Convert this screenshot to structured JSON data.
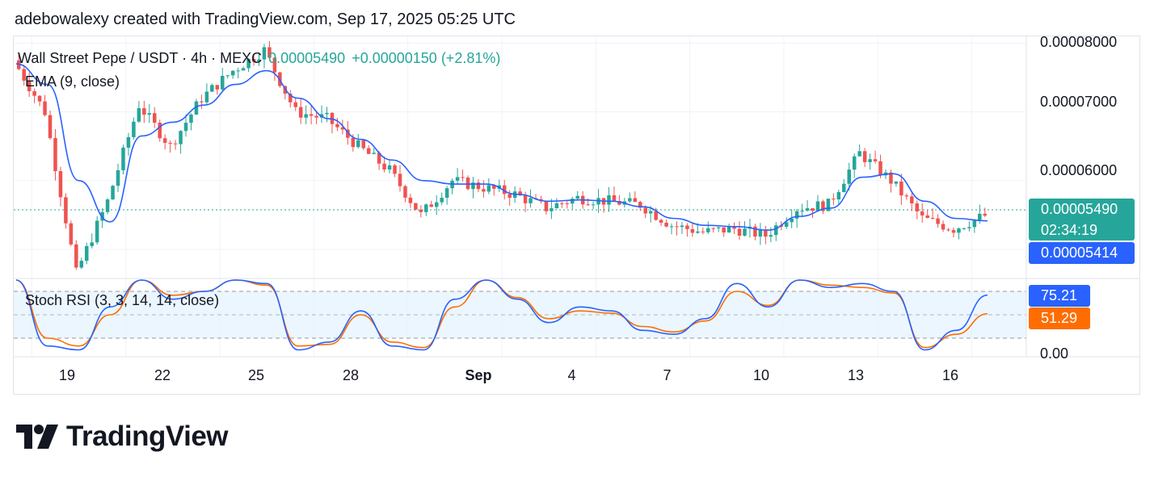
{
  "caption": "adebowalexy created with TradingView.com, Sep 17, 2025 05:25 UTC",
  "legend": {
    "symbol": "Wall Street Pepe / USDT · 4h · MEXC",
    "last_price": "0.00005490",
    "change": "+0.00000150 (+2.81%)",
    "ema_label": "EMA (9, close)",
    "stoch_label": "Stoch RSI (3, 3, 14, 14, close)"
  },
  "badges": {
    "last_price": "0.00005490",
    "countdown": "02:34:19",
    "ema_value": "0.00005414",
    "stoch_k": "75.21",
    "stoch_d": "51.29"
  },
  "price_axis": [
    "0.00008000",
    "0.00007000",
    "0.00006000"
  ],
  "rsi_axis": [
    "0.00"
  ],
  "time_axis": [
    {
      "label": "19"
    },
    {
      "label": "22"
    },
    {
      "label": "25"
    },
    {
      "label": "28"
    },
    {
      "label": "Sep",
      "bold": true
    },
    {
      "label": "4"
    },
    {
      "label": "7"
    },
    {
      "label": "10"
    },
    {
      "label": "13"
    },
    {
      "label": "16"
    }
  ],
  "brand": "TradingView",
  "colors": {
    "up": "#26a69a",
    "down": "#ef5350",
    "ema": "#2962ff",
    "stoch_k": "#2962ff",
    "stoch_d": "#ff6d00",
    "band": "#e3f2fd"
  },
  "chart_data": {
    "type": "candlestick",
    "title": "Wall Street Pepe / USDT · 4h · MEXC",
    "price_range": [
      4.6e-05,
      8.1e-05
    ],
    "price_key_points": [
      {
        "date": "Aug 17",
        "price": 7.75e-05
      },
      {
        "date": "Aug 18",
        "price": 7e-05
      },
      {
        "date": "Aug 19",
        "price": 4.65e-05
      },
      {
        "date": "Aug 20",
        "price": 5.7e-05
      },
      {
        "date": "Aug 21",
        "price": 7.1e-05
      },
      {
        "date": "Aug 22",
        "price": 6.5e-05
      },
      {
        "date": "Aug 23",
        "price": 7.2e-05
      },
      {
        "date": "Aug 24",
        "price": 7.6e-05
      },
      {
        "date": "Aug 25",
        "price": 7.9e-05
      },
      {
        "date": "Aug 26",
        "price": 7e-05
      },
      {
        "date": "Aug 27",
        "price": 6.9e-05
      },
      {
        "date": "Aug 28",
        "price": 6.5e-05
      },
      {
        "date": "Aug 29",
        "price": 6.15e-05
      },
      {
        "date": "Aug 30",
        "price": 5.5e-05
      },
      {
        "date": "Aug 31",
        "price": 6e-05
      },
      {
        "date": "Sep 1",
        "price": 5.9e-05
      },
      {
        "date": "Sep 2",
        "price": 5.8e-05
      },
      {
        "date": "Sep 3",
        "price": 5.6e-05
      },
      {
        "date": "Sep 4",
        "price": 5.75e-05
      },
      {
        "date": "Sep 5",
        "price": 5.7e-05
      },
      {
        "date": "Sep 6",
        "price": 5.65e-05
      },
      {
        "date": "Sep 7",
        "price": 5.35e-05
      },
      {
        "date": "Sep 8",
        "price": 5.25e-05
      },
      {
        "date": "Sep 9",
        "price": 5.3e-05
      },
      {
        "date": "Sep 10",
        "price": 5.2e-05
      },
      {
        "date": "Sep 11",
        "price": 5.6e-05
      },
      {
        "date": "Sep 12",
        "price": 5.65e-05
      },
      {
        "date": "Sep 13",
        "price": 6.4e-05
      },
      {
        "date": "Sep 14",
        "price": 6e-05
      },
      {
        "date": "Sep 15",
        "price": 5.45e-05
      },
      {
        "date": "Sep 16",
        "price": 5.3e-05
      },
      {
        "date": "Sep 17",
        "price": 5.49e-05
      }
    ],
    "ema_key_points": [
      {
        "date": "Aug 17",
        "price": 7.7e-05
      },
      {
        "date": "Aug 18",
        "price": 7.4e-05
      },
      {
        "date": "Aug 19",
        "price": 6e-05
      },
      {
        "date": "Aug 20",
        "price": 5.4e-05
      },
      {
        "date": "Aug 21",
        "price": 6.65e-05
      },
      {
        "date": "Aug 22",
        "price": 6.85e-05
      },
      {
        "date": "Aug 23",
        "price": 7.1e-05
      },
      {
        "date": "Aug 24",
        "price": 7.4e-05
      },
      {
        "date": "Aug 25",
        "price": 7.6e-05
      },
      {
        "date": "Aug 26",
        "price": 7.2e-05
      },
      {
        "date": "Aug 27",
        "price": 6.9e-05
      },
      {
        "date": "Aug 28",
        "price": 6.6e-05
      },
      {
        "date": "Aug 29",
        "price": 6.3e-05
      },
      {
        "date": "Aug 30",
        "price": 6e-05
      },
      {
        "date": "Aug 31",
        "price": 5.95e-05
      },
      {
        "date": "Sep 1",
        "price": 5.95e-05
      },
      {
        "date": "Sep 2",
        "price": 5.8e-05
      },
      {
        "date": "Sep 3",
        "price": 5.7e-05
      },
      {
        "date": "Sep 4",
        "price": 5.72e-05
      },
      {
        "date": "Sep 5",
        "price": 5.7e-05
      },
      {
        "date": "Sep 6",
        "price": 5.62e-05
      },
      {
        "date": "Sep 7",
        "price": 5.45e-05
      },
      {
        "date": "Sep 8",
        "price": 5.35e-05
      },
      {
        "date": "Sep 9",
        "price": 5.33e-05
      },
      {
        "date": "Sep 10",
        "price": 5.28e-05
      },
      {
        "date": "Sep 11",
        "price": 5.48e-05
      },
      {
        "date": "Sep 12",
        "price": 5.6e-05
      },
      {
        "date": "Sep 13",
        "price": 6.05e-05
      },
      {
        "date": "Sep 14",
        "price": 6.1e-05
      },
      {
        "date": "Sep 15",
        "price": 5.7e-05
      },
      {
        "date": "Sep 16",
        "price": 5.45e-05
      },
      {
        "date": "Sep 17",
        "price": 5.414e-05
      }
    ],
    "stoch_rsi": {
      "range": [
        0,
        100
      ],
      "band": [
        20,
        80
      ],
      "k_key_points": [
        {
          "date": "Aug 17",
          "value": 100
        },
        {
          "date": "Aug 18",
          "value": 10
        },
        {
          "date": "Aug 19",
          "value": 5
        },
        {
          "date": "Aug 20",
          "value": 60
        },
        {
          "date": "Aug 21",
          "value": 100
        },
        {
          "date": "Aug 22",
          "value": 70
        },
        {
          "date": "Aug 23",
          "value": 80
        },
        {
          "date": "Aug 24",
          "value": 100
        },
        {
          "date": "Aug 25",
          "value": 90
        },
        {
          "date": "Aug 26",
          "value": 5
        },
        {
          "date": "Aug 27",
          "value": 15
        },
        {
          "date": "Aug 28",
          "value": 55
        },
        {
          "date": "Aug 29",
          "value": 10
        },
        {
          "date": "Aug 30",
          "value": 5
        },
        {
          "date": "Aug 31",
          "value": 70
        },
        {
          "date": "Sep 1",
          "value": 100
        },
        {
          "date": "Sep 2",
          "value": 70
        },
        {
          "date": "Sep 3",
          "value": 40
        },
        {
          "date": "Sep 4",
          "value": 60
        },
        {
          "date": "Sep 5",
          "value": 55
        },
        {
          "date": "Sep 6",
          "value": 30
        },
        {
          "date": "Sep 7",
          "value": 25
        },
        {
          "date": "Sep 8",
          "value": 45
        },
        {
          "date": "Sep 9",
          "value": 90
        },
        {
          "date": "Sep 10",
          "value": 60
        },
        {
          "date": "Sep 11",
          "value": 100
        },
        {
          "date": "Sep 12",
          "value": 85
        },
        {
          "date": "Sep 13",
          "value": 90
        },
        {
          "date": "Sep 14",
          "value": 80
        },
        {
          "date": "Sep 15",
          "value": 5
        },
        {
          "date": "Sep 16",
          "value": 30
        },
        {
          "date": "Sep 17",
          "value": 75.21
        }
      ],
      "d_key_points": [
        {
          "date": "Aug 17",
          "value": 100
        },
        {
          "date": "Aug 18",
          "value": 20
        },
        {
          "date": "Aug 19",
          "value": 10
        },
        {
          "date": "Aug 20",
          "value": 50
        },
        {
          "date": "Aug 21",
          "value": 95
        },
        {
          "date": "Aug 22",
          "value": 75
        },
        {
          "date": "Aug 23",
          "value": 80
        },
        {
          "date": "Aug 24",
          "value": 98
        },
        {
          "date": "Aug 25",
          "value": 88
        },
        {
          "date": "Aug 26",
          "value": 10
        },
        {
          "date": "Aug 27",
          "value": 12
        },
        {
          "date": "Aug 28",
          "value": 50
        },
        {
          "date": "Aug 29",
          "value": 15
        },
        {
          "date": "Aug 30",
          "value": 8
        },
        {
          "date": "Aug 31",
          "value": 60
        },
        {
          "date": "Sep 1",
          "value": 95
        },
        {
          "date": "Sep 2",
          "value": 72
        },
        {
          "date": "Sep 3",
          "value": 45
        },
        {
          "date": "Sep 4",
          "value": 55
        },
        {
          "date": "Sep 5",
          "value": 52
        },
        {
          "date": "Sep 6",
          "value": 35
        },
        {
          "date": "Sep 7",
          "value": 28
        },
        {
          "date": "Sep 8",
          "value": 42
        },
        {
          "date": "Sep 9",
          "value": 80
        },
        {
          "date": "Sep 10",
          "value": 62
        },
        {
          "date": "Sep 11",
          "value": 95
        },
        {
          "date": "Sep 12",
          "value": 88
        },
        {
          "date": "Sep 13",
          "value": 85
        },
        {
          "date": "Sep 14",
          "value": 78
        },
        {
          "date": "Sep 15",
          "value": 8
        },
        {
          "date": "Sep 16",
          "value": 25
        },
        {
          "date": "Sep 17",
          "value": 51.29
        }
      ]
    }
  }
}
